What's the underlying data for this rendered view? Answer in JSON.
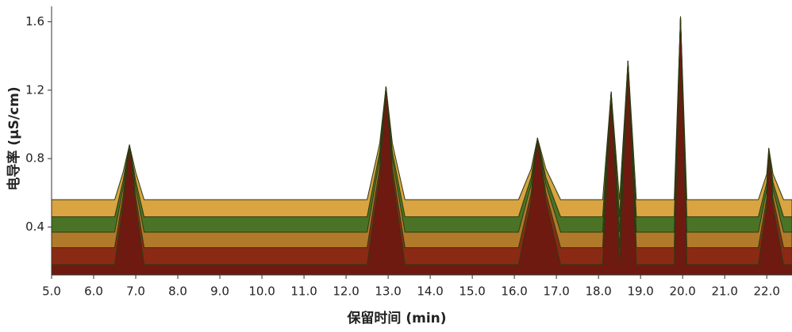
{
  "chart_data": {
    "type": "line",
    "xlabel": "保留时间 (min)",
    "ylabel": "电导率 (μS/cm)",
    "xlim": [
      5.0,
      22.6
    ],
    "ylim": [
      0.12,
      1.69
    ],
    "xticks": [
      {
        "value": 5,
        "label": "5.0"
      },
      {
        "value": 6,
        "label": "6.0"
      },
      {
        "value": 7,
        "label": "7.0"
      },
      {
        "value": 8,
        "label": "8.0"
      },
      {
        "value": 9,
        "label": "9.0"
      },
      {
        "value": 10,
        "label": "10.0"
      },
      {
        "value": 11,
        "label": "11.0"
      },
      {
        "value": 12,
        "label": "12.0"
      },
      {
        "value": 13,
        "label": "13.0"
      },
      {
        "value": 14,
        "label": "14.0"
      },
      {
        "value": 15,
        "label": "15.0"
      },
      {
        "value": 16,
        "label": "16.0"
      },
      {
        "value": 17,
        "label": "17.0"
      },
      {
        "value": 18,
        "label": "18.0"
      },
      {
        "value": 19,
        "label": "19.0"
      },
      {
        "value": 20,
        "label": "20.0"
      },
      {
        "value": 21,
        "label": "21.0"
      },
      {
        "value": 22,
        "label": "22.0"
      }
    ],
    "yticks": [
      0.4,
      0.8,
      1.2,
      1.6
    ],
    "x": [
      5.0,
      6.5,
      6.7,
      6.85,
      7.0,
      7.2,
      12.5,
      12.8,
      12.95,
      13.1,
      13.4,
      16.1,
      16.4,
      16.55,
      16.75,
      17.1,
      18.1,
      18.3,
      18.5,
      18.7,
      18.9,
      19.8,
      19.95,
      20.1,
      21.8,
      22.0,
      22.05,
      22.15,
      22.4,
      22.6
    ],
    "series": [
      {
        "color": "#d9a441",
        "values": [
          0.56,
          0.56,
          0.72,
          0.88,
          0.72,
          0.56,
          0.56,
          0.89,
          1.22,
          0.89,
          0.56,
          0.56,
          0.74,
          0.92,
          0.74,
          0.56,
          0.56,
          1.19,
          0.56,
          1.37,
          0.56,
          0.56,
          1.63,
          0.56,
          0.56,
          0.71,
          0.86,
          0.71,
          0.56,
          0.56
        ]
      },
      {
        "color": "#4a7326",
        "values": [
          0.46,
          0.46,
          0.67,
          0.88,
          0.67,
          0.46,
          0.46,
          0.84,
          1.22,
          0.84,
          0.46,
          0.46,
          0.69,
          0.92,
          0.69,
          0.46,
          0.46,
          1.19,
          0.46,
          1.37,
          0.46,
          0.46,
          1.63,
          0.46,
          0.46,
          0.66,
          0.86,
          0.66,
          0.46,
          0.46
        ]
      },
      {
        "color": "#b07a2a",
        "values": [
          0.37,
          0.37,
          0.63,
          0.88,
          0.63,
          0.37,
          0.37,
          0.8,
          1.22,
          0.8,
          0.37,
          0.37,
          0.65,
          0.92,
          0.65,
          0.37,
          0.37,
          1.19,
          0.37,
          1.37,
          0.37,
          0.37,
          1.63,
          0.37,
          0.37,
          0.62,
          0.86,
          0.62,
          0.37,
          0.37
        ]
      },
      {
        "color": "#8a2a14",
        "values": [
          0.28,
          0.28,
          0.58,
          0.88,
          0.58,
          0.28,
          0.28,
          0.75,
          1.22,
          0.75,
          0.28,
          0.28,
          0.6,
          0.92,
          0.6,
          0.28,
          0.28,
          1.19,
          0.28,
          1.37,
          0.28,
          0.28,
          1.63,
          0.28,
          0.28,
          0.57,
          0.86,
          0.57,
          0.28,
          0.28
        ]
      },
      {
        "color": "#6e1a10",
        "values": [
          0.18,
          0.18,
          0.53,
          0.88,
          0.53,
          0.18,
          0.18,
          0.7,
          1.22,
          0.7,
          0.18,
          0.18,
          0.55,
          0.92,
          0.55,
          0.18,
          0.18,
          1.19,
          0.18,
          1.37,
          0.18,
          0.18,
          1.63,
          0.18,
          0.18,
          0.52,
          0.86,
          0.52,
          0.18,
          0.18
        ]
      }
    ]
  }
}
